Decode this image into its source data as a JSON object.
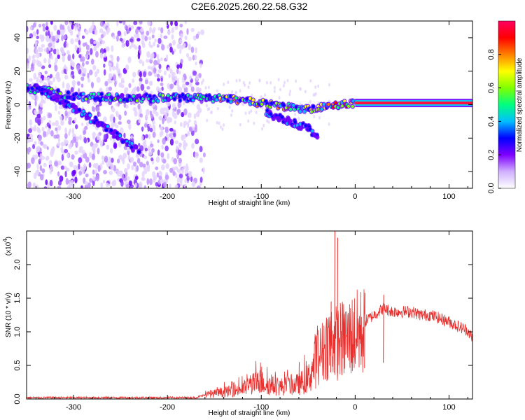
{
  "title": "C2E6.2025.260.22.58.G32",
  "chart_data": [
    {
      "type": "heatmap",
      "xlabel": "Height of straight line (km)",
      "ylabel": "Frequency (Hz)",
      "xlim": [
        -350,
        125
      ],
      "ylim": [
        -50,
        50
      ],
      "xticks": [
        -300,
        -200,
        -100,
        0,
        100
      ],
      "yticks": [
        -40,
        -20,
        0,
        20,
        40
      ],
      "colorbar": {
        "label": "Normalized spectral amplitude",
        "range": [
          0,
          1
        ],
        "ticks": [
          "0.0",
          "0.2",
          "0.4",
          "0.6",
          "0.8"
        ],
        "colormap": [
          "#ffffff",
          "#d0b0ff",
          "#7f00ff",
          "#0000ff",
          "#00bfff",
          "#00ff80",
          "#80ff00",
          "#ffff00",
          "#ff8000",
          "#ff0000",
          "#ff0060"
        ]
      },
      "features": [
        {
          "name": "broadband noise",
          "x_range": [
            -350,
            -160
          ],
          "freq_range": [
            -50,
            50
          ],
          "amplitude": 0.15
        },
        {
          "name": "trace main",
          "points": [
            [
              -350,
              10
            ],
            [
              -300,
              5
            ],
            [
              -250,
              4
            ],
            [
              -200,
              4
            ],
            [
              -150,
              4
            ],
            [
              -100,
              1
            ],
            [
              -50,
              -3
            ],
            [
              -20,
              0
            ],
            [
              0,
              1
            ]
          ],
          "amplitude": 0.45
        },
        {
          "name": "trace diagonal",
          "points": [
            [
              -340,
              10
            ],
            [
              -300,
              -2
            ],
            [
              -270,
              -12
            ],
            [
              -240,
              -24
            ],
            [
              -230,
              -28
            ]
          ],
          "amplitude": 0.3
        },
        {
          "name": "trace lower branch",
          "points": [
            [
              -95,
              -5
            ],
            [
              -70,
              -10
            ],
            [
              -50,
              -14
            ],
            [
              -40,
              -20
            ]
          ],
          "amplitude": 0.3
        },
        {
          "name": "carrier line",
          "points": [
            [
              0,
              1
            ],
            [
              125,
              1
            ]
          ],
          "amplitude": 0.95
        }
      ]
    },
    {
      "type": "line",
      "xlabel": "Height of straight line (km)",
      "ylabel": "SNR (10 * v/v)",
      "scale_label": "(x10",
      "scale_exponent": "4",
      "xlim": [
        -350,
        125
      ],
      "ylim": [
        0,
        2.5
      ],
      "xticks": [
        -300,
        -200,
        -100,
        0,
        100
      ],
      "yticks": [
        "0.0",
        "0.5",
        "1.0",
        "1.5",
        "2.0"
      ],
      "series": [
        {
          "name": "SNR",
          "color": "#e8312f",
          "envelope": {
            "x": [
              -350,
              -300,
              -250,
              -200,
              -170,
              -160,
              -140,
              -120,
              -110,
              -100,
              -90,
              -80,
              -70,
              -60,
              -50,
              -45,
              -40,
              -35,
              -30,
              -25,
              -20,
              -15,
              -10,
              -5,
              0,
              10,
              20,
              30,
              40,
              50,
              60,
              70,
              80,
              90,
              100,
              110,
              120,
              125
            ],
            "y": [
              0.02,
              0.02,
              0.02,
              0.02,
              0.02,
              0.06,
              0.1,
              0.15,
              0.22,
              0.25,
              0.2,
              0.18,
              0.2,
              0.22,
              0.3,
              0.45,
              0.7,
              0.8,
              0.95,
              1.0,
              0.95,
              1.0,
              1.0,
              1.05,
              1.1,
              1.15,
              1.25,
              1.35,
              1.3,
              1.3,
              1.3,
              1.25,
              1.25,
              1.2,
              1.15,
              1.08,
              1.02,
              0.9
            ]
          },
          "spikes": [
            {
              "x": -22,
              "y": 2.5
            },
            {
              "x": -19,
              "y": 2.4
            },
            {
              "x": -26,
              "y": 1.45
            },
            {
              "x": 10,
              "y": 1.58
            },
            {
              "x": 30,
              "y": 1.55
            },
            {
              "x": -60,
              "y": 0.55
            },
            {
              "x": -100,
              "y": 0.48
            }
          ]
        }
      ]
    }
  ]
}
